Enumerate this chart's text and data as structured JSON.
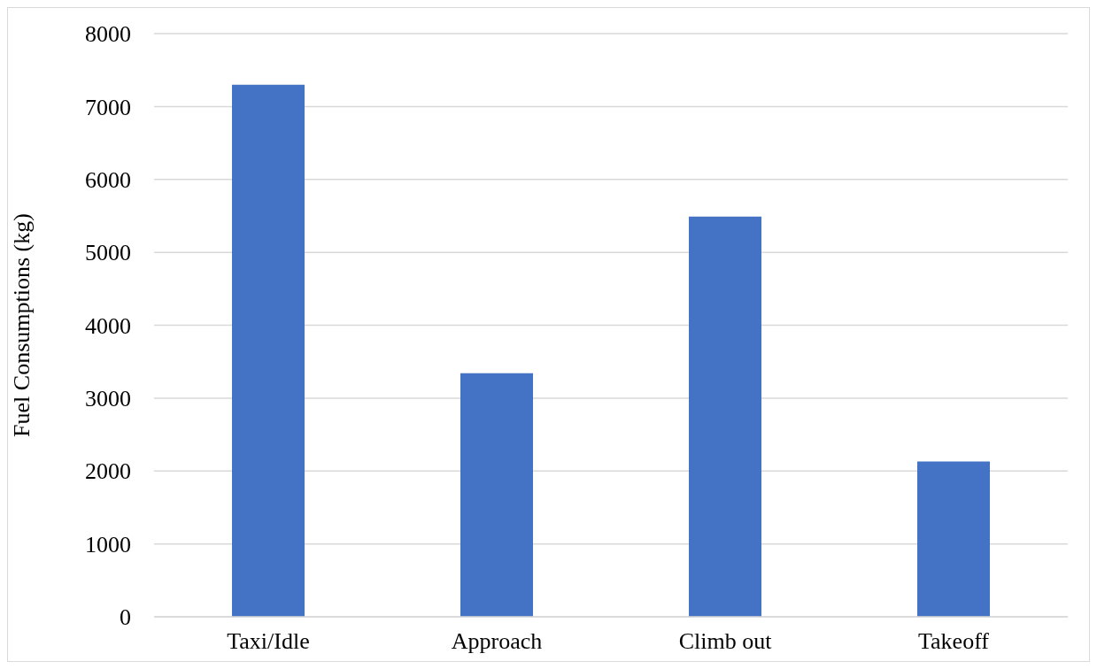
{
  "chart_data": {
    "type": "bar",
    "ylabel": "Fuel Consumptions (kg)",
    "categories": [
      "Taxi/Idle",
      "Approach",
      "Climb out",
      "Takeoff"
    ],
    "values": [
      7300,
      3340,
      5490,
      2130
    ],
    "color": "#4472c4",
    "ylim": [
      0,
      8000
    ],
    "yticks": [
      0,
      1000,
      2000,
      3000,
      4000,
      5000,
      6000,
      7000,
      8000
    ],
    "grid": "y",
    "legend": false
  }
}
